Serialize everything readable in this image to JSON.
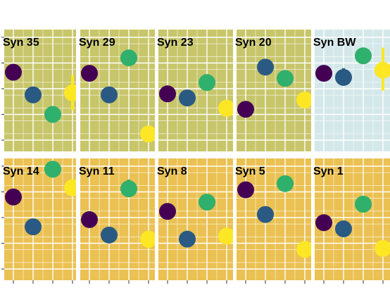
{
  "chart_data": {
    "type": "scatter",
    "title": "",
    "xlabel": "",
    "ylabel": "",
    "x_categories": [
      1,
      2,
      3,
      4
    ],
    "ylim": [
      0.0,
      1.0
    ],
    "grid": true,
    "legend": "none",
    "series_colors": [
      "#440154",
      "#2a5a83",
      "#2fb06c",
      "#fde725"
    ],
    "panels": [
      {
        "title": "Syn 35",
        "background": "#c8c66b",
        "points": [
          {
            "x": 1,
            "y": 0.66,
            "color": "#440154"
          },
          {
            "x": 2,
            "y": 0.44,
            "color": "#2a5a83"
          },
          {
            "x": 3,
            "y": 0.25,
            "color": "#2fb06c"
          },
          {
            "x": 4,
            "y": 0.46,
            "color": "#fde725",
            "err_low": 0.29,
            "err_high": 0.63
          }
        ]
      },
      {
        "title": "Syn 29",
        "background": "#c8c66b",
        "points": [
          {
            "x": 1,
            "y": 0.65,
            "color": "#440154"
          },
          {
            "x": 2,
            "y": 0.44,
            "color": "#2a5a83"
          },
          {
            "x": 3,
            "y": 0.8,
            "color": "#2fb06c"
          },
          {
            "x": 4,
            "y": 0.06,
            "color": "#fde725"
          }
        ]
      },
      {
        "title": "Syn 23",
        "background": "#c8c66b",
        "points": [
          {
            "x": 1,
            "y": 0.45,
            "color": "#440154"
          },
          {
            "x": 2,
            "y": 0.41,
            "color": "#2a5a83"
          },
          {
            "x": 3,
            "y": 0.56,
            "color": "#2fb06c",
            "err_low": 0.48,
            "err_high": 0.64
          },
          {
            "x": 4,
            "y": 0.31,
            "color": "#fde725"
          }
        ]
      },
      {
        "title": "Syn 20",
        "background": "#c8c66b",
        "points": [
          {
            "x": 1,
            "y": 0.3,
            "color": "#440154"
          },
          {
            "x": 2,
            "y": 0.71,
            "color": "#2a5a83"
          },
          {
            "x": 3,
            "y": 0.6,
            "color": "#2fb06c"
          },
          {
            "x": 4,
            "y": 0.39,
            "color": "#fde725"
          }
        ]
      },
      {
        "title": "Syn BW",
        "background": "#d4e8ea",
        "points": [
          {
            "x": 1,
            "y": 0.65,
            "color": "#440154"
          },
          {
            "x": 2,
            "y": 0.61,
            "color": "#2a5a83",
            "err_low": 0.53,
            "err_high": 0.7
          },
          {
            "x": 3,
            "y": 0.82,
            "color": "#2fb06c"
          },
          {
            "x": 4,
            "y": 0.68,
            "color": "#fde725",
            "err_low": 0.48,
            "err_high": 0.9
          }
        ]
      },
      {
        "title": "Syn 14",
        "background": "#eac152",
        "points": [
          {
            "x": 1,
            "y": 0.7,
            "color": "#440154"
          },
          {
            "x": 2,
            "y": 0.41,
            "color": "#2a5a83"
          },
          {
            "x": 3,
            "y": 0.97,
            "color": "#2fb06c"
          },
          {
            "x": 4,
            "y": 0.79,
            "color": "#fde725"
          }
        ]
      },
      {
        "title": "Syn 11",
        "background": "#eac152",
        "points": [
          {
            "x": 1,
            "y": 0.48,
            "color": "#440154"
          },
          {
            "x": 2,
            "y": 0.33,
            "color": "#2a5a83"
          },
          {
            "x": 3,
            "y": 0.78,
            "color": "#2fb06c",
            "err_low": 0.7,
            "err_high": 0.87
          },
          {
            "x": 4,
            "y": 0.29,
            "color": "#fde725",
            "err_low": 0.2,
            "err_high": 0.37
          }
        ]
      },
      {
        "title": "Syn 8",
        "background": "#eac152",
        "points": [
          {
            "x": 1,
            "y": 0.56,
            "color": "#440154"
          },
          {
            "x": 2,
            "y": 0.29,
            "color": "#2a5a83"
          },
          {
            "x": 3,
            "y": 0.65,
            "color": "#2fb06c"
          },
          {
            "x": 4,
            "y": 0.32,
            "color": "#fde725",
            "err_low": 0.24,
            "err_high": 0.4
          }
        ]
      },
      {
        "title": "Syn 5",
        "background": "#eac152",
        "points": [
          {
            "x": 1,
            "y": 0.77,
            "color": "#440154"
          },
          {
            "x": 2,
            "y": 0.53,
            "color": "#2a5a83"
          },
          {
            "x": 3,
            "y": 0.83,
            "color": "#2fb06c"
          },
          {
            "x": 4,
            "y": 0.19,
            "color": "#fde725"
          }
        ]
      },
      {
        "title": "Syn 1",
        "background": "#eac152",
        "points": [
          {
            "x": 1,
            "y": 0.45,
            "color": "#440154"
          },
          {
            "x": 2,
            "y": 0.39,
            "color": "#2a5a83"
          },
          {
            "x": 3,
            "y": 0.63,
            "color": "#2fb06c"
          },
          {
            "x": 4,
            "y": 0.2,
            "color": "#fde725"
          }
        ]
      }
    ]
  }
}
